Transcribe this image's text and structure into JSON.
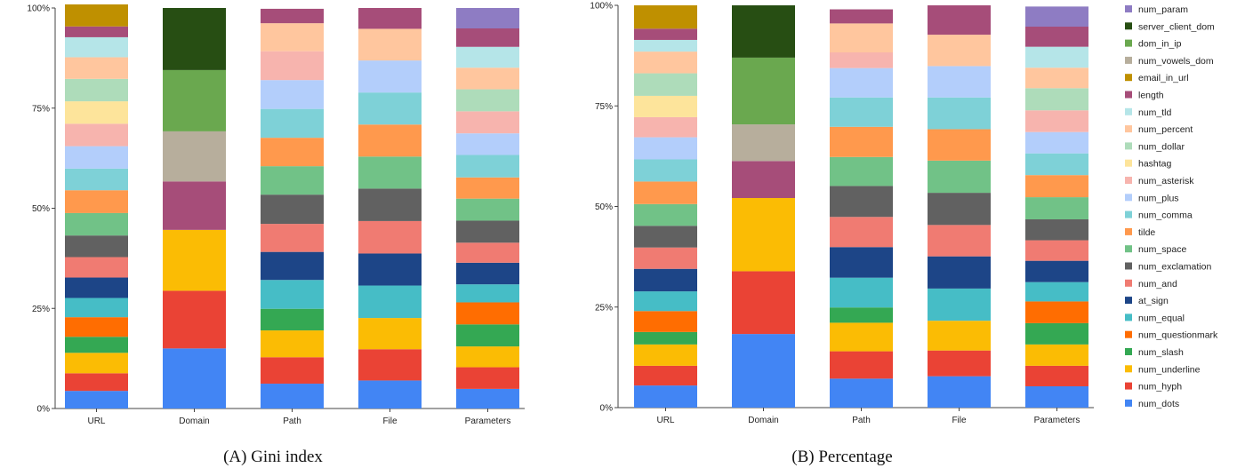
{
  "feature_colors": {
    "num_dots": "#4285F4",
    "num_hyph": "#EA4335",
    "num_underline": "#FBBC04",
    "num_slash": "#34A853",
    "num_questionmark": "#FF6D01",
    "num_equal": "#46BDC6",
    "at_sign": "#1D4587",
    "num_and": "#F07B72",
    "num_exclamation": "#616161",
    "num_space": "#71C287",
    "tilde": "#FF994D",
    "num_comma": "#7ED1D7",
    "num_plus": "#B3CEFB",
    "num_asterisk": "#F7B4AE",
    "hashtag": "#FDE49B",
    "num_dollar": "#AEDCBA",
    "num_percent": "#FFC69E",
    "num_tld": "#B5E5E8",
    "length": "#A64D79",
    "email_in_url": "#BF9000",
    "num_vowels_dom": "#B7AE9C",
    "dom_in_ip": "#6AA84F",
    "server_client_dom": "#274E13",
    "num_param": "#8E7CC3"
  },
  "legend": {
    "position": "right",
    "entries": [
      "num_param",
      "server_client_dom",
      "dom_in_ip",
      "num_vowels_dom",
      "email_in_url",
      "length",
      "num_tld",
      "num_percent",
      "num_dollar",
      "hashtag",
      "num_asterisk",
      "num_plus",
      "num_comma",
      "tilde",
      "num_space",
      "num_exclamation",
      "num_and",
      "at_sign",
      "num_equal",
      "num_questionmark",
      "num_slash",
      "num_underline",
      "num_hyph",
      "num_dots"
    ]
  },
  "chart_data": [
    {
      "type": "bar",
      "stacked": true,
      "caption": "(A)  Gini index",
      "title": "",
      "xlabel": "",
      "ylabel": "",
      "categories": [
        "URL",
        "Domain",
        "Path",
        "File",
        "Parameters"
      ],
      "yticks": [
        "0%",
        "25%",
        "50%",
        "75%",
        "100%"
      ],
      "ylim": [
        0,
        100
      ],
      "grid": false,
      "series": [
        {
          "name": "num_dots",
          "values": [
            4.4,
            15.0,
            6.2,
            7.0,
            4.9
          ]
        },
        {
          "name": "num_hyph",
          "values": [
            4.4,
            14.4,
            6.6,
            7.8,
            5.4
          ]
        },
        {
          "name": "num_underline",
          "values": [
            5.1,
            15.2,
            6.7,
            7.8,
            5.2
          ]
        },
        {
          "name": "num_slash",
          "values": [
            4.0,
            0,
            5.4,
            0,
            5.5
          ]
        },
        {
          "name": "num_questionmark",
          "values": [
            4.9,
            0,
            0,
            0,
            5.5
          ]
        },
        {
          "name": "num_equal",
          "values": [
            4.8,
            0,
            7.2,
            8.1,
            4.5
          ]
        },
        {
          "name": "at_sign",
          "values": [
            5.1,
            0,
            7.0,
            8.0,
            5.4
          ]
        },
        {
          "name": "num_and",
          "values": [
            5.1,
            0,
            7.0,
            8.1,
            5.0
          ]
        },
        {
          "name": "num_exclamation",
          "values": [
            5.4,
            0,
            7.3,
            8.1,
            5.5
          ]
        },
        {
          "name": "num_space",
          "values": [
            5.6,
            0,
            7.1,
            8.0,
            5.5
          ]
        },
        {
          "name": "tilde",
          "values": [
            5.7,
            0,
            7.1,
            8.0,
            5.3
          ]
        },
        {
          "name": "num_comma",
          "values": [
            5.4,
            0,
            7.2,
            8.0,
            5.6
          ]
        },
        {
          "name": "num_plus",
          "values": [
            5.6,
            0,
            7.2,
            8.0,
            5.4
          ]
        },
        {
          "name": "num_asterisk",
          "values": [
            5.6,
            0,
            7.2,
            0,
            5.5
          ]
        },
        {
          "name": "hashtag",
          "values": [
            5.6,
            0,
            0,
            0,
            0
          ]
        },
        {
          "name": "num_dollar",
          "values": [
            5.6,
            0,
            0,
            0,
            5.5
          ]
        },
        {
          "name": "num_percent",
          "values": [
            5.4,
            0,
            7.0,
            7.9,
            5.4
          ]
        },
        {
          "name": "num_tld",
          "values": [
            5.0,
            0,
            0,
            0,
            5.2
          ]
        },
        {
          "name": "length",
          "values": [
            2.7,
            12.1,
            3.6,
            5.2,
            4.6
          ]
        },
        {
          "name": "email_in_url",
          "values": [
            5.5,
            0,
            0,
            0,
            0
          ]
        },
        {
          "name": "num_vowels_dom",
          "values": [
            0,
            12.5,
            0,
            0,
            0
          ]
        },
        {
          "name": "dom_in_ip",
          "values": [
            0,
            15.3,
            0,
            0,
            0
          ]
        },
        {
          "name": "server_client_dom",
          "values": [
            0,
            15.5,
            0,
            0,
            0
          ]
        },
        {
          "name": "num_param",
          "values": [
            0,
            0,
            0,
            0,
            5.1
          ]
        }
      ]
    },
    {
      "type": "bar",
      "stacked": true,
      "caption": "(B)  Percentage",
      "title": "",
      "xlabel": "",
      "ylabel": "",
      "categories": [
        "URL",
        "Domain",
        "Path",
        "File",
        "Parameters"
      ],
      "yticks": [
        "0%",
        "25%",
        "50%",
        "75%",
        "100%"
      ],
      "ylim": [
        0,
        100
      ],
      "grid": false,
      "series": [
        {
          "name": "num_dots",
          "values": [
            5.5,
            18.3,
            7.2,
            7.8,
            5.3
          ]
        },
        {
          "name": "num_hyph",
          "values": [
            4.9,
            15.6,
            6.8,
            6.4,
            5.1
          ]
        },
        {
          "name": "num_underline",
          "values": [
            5.3,
            18.2,
            7.1,
            7.4,
            5.3
          ]
        },
        {
          "name": "num_slash",
          "values": [
            3.1,
            0,
            3.8,
            0,
            5.3
          ]
        },
        {
          "name": "num_questionmark",
          "values": [
            5.2,
            0,
            0,
            0,
            5.4
          ]
        },
        {
          "name": "num_equal",
          "values": [
            4.9,
            0,
            7.4,
            8.0,
            4.8
          ]
        },
        {
          "name": "at_sign",
          "values": [
            5.6,
            0,
            7.6,
            8.0,
            5.3
          ]
        },
        {
          "name": "num_and",
          "values": [
            5.3,
            0,
            7.5,
            7.8,
            5.1
          ]
        },
        {
          "name": "num_exclamation",
          "values": [
            5.4,
            0,
            7.7,
            8.0,
            5.2
          ]
        },
        {
          "name": "num_space",
          "values": [
            5.4,
            0,
            7.2,
            8.0,
            5.5
          ]
        },
        {
          "name": "tilde",
          "values": [
            5.6,
            0,
            7.5,
            7.8,
            5.5
          ]
        },
        {
          "name": "num_comma",
          "values": [
            5.5,
            0,
            7.3,
            7.9,
            5.4
          ]
        },
        {
          "name": "num_plus",
          "values": [
            5.5,
            0,
            7.3,
            7.8,
            5.3
          ]
        },
        {
          "name": "num_asterisk",
          "values": [
            5.0,
            0,
            3.9,
            0,
            5.4
          ]
        },
        {
          "name": "hashtag",
          "values": [
            5.3,
            0,
            0,
            0,
            0
          ]
        },
        {
          "name": "num_dollar",
          "values": [
            5.6,
            0,
            0,
            0,
            5.5
          ]
        },
        {
          "name": "num_percent",
          "values": [
            5.4,
            0,
            7.2,
            7.8,
            5.1
          ]
        },
        {
          "name": "num_tld",
          "values": [
            2.9,
            0,
            0,
            0,
            5.2
          ]
        },
        {
          "name": "length",
          "values": [
            2.8,
            9.2,
            3.5,
            7.3,
            5.0
          ]
        },
        {
          "name": "email_in_url",
          "values": [
            5.8,
            0,
            0,
            0,
            0
          ]
        },
        {
          "name": "num_vowels_dom",
          "values": [
            0,
            9.1,
            0,
            0,
            0
          ]
        },
        {
          "name": "dom_in_ip",
          "values": [
            0,
            16.6,
            0,
            0,
            0
          ]
        },
        {
          "name": "server_client_dom",
          "values": [
            0,
            13.0,
            0,
            0,
            0
          ]
        },
        {
          "name": "num_param",
          "values": [
            0,
            0,
            0,
            0,
            5.0
          ]
        }
      ]
    }
  ]
}
